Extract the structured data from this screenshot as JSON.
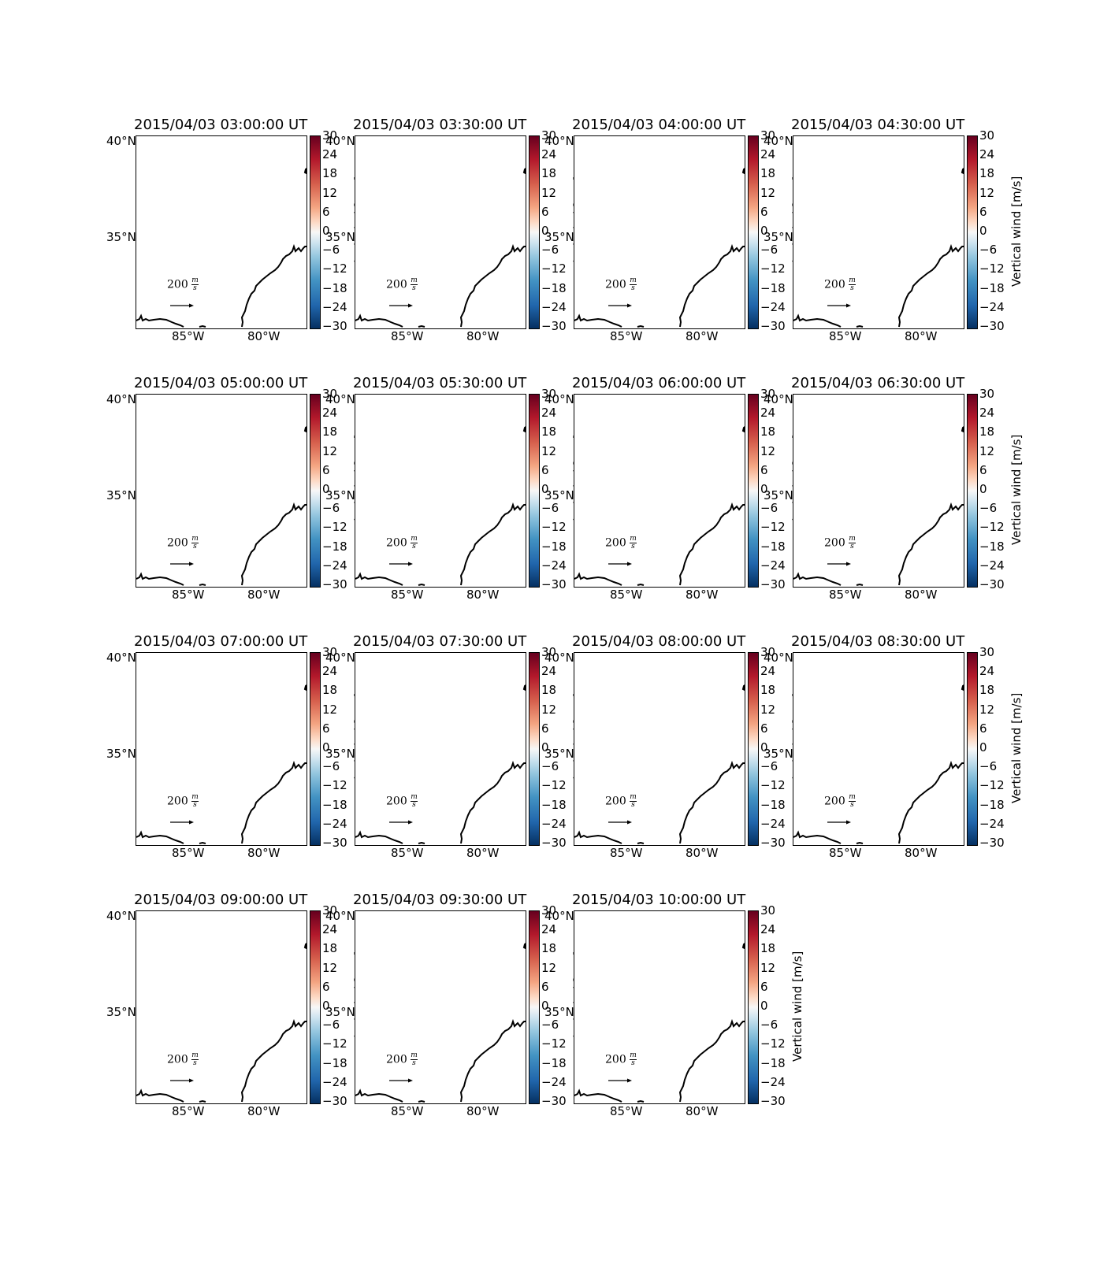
{
  "figure": {
    "panels": [
      {
        "title": "2015/04/03 03:00:00 UT"
      },
      {
        "title": "2015/04/03 03:30:00 UT"
      },
      {
        "title": "2015/04/03 04:00:00 UT"
      },
      {
        "title": "2015/04/03 04:30:00 UT"
      },
      {
        "title": "2015/04/03 05:00:00 UT"
      },
      {
        "title": "2015/04/03 05:30:00 UT"
      },
      {
        "title": "2015/04/03 06:00:00 UT"
      },
      {
        "title": "2015/04/03 06:30:00 UT"
      },
      {
        "title": "2015/04/03 07:00:00 UT"
      },
      {
        "title": "2015/04/03 07:30:00 UT"
      },
      {
        "title": "2015/04/03 08:00:00 UT"
      },
      {
        "title": "2015/04/03 08:30:00 UT"
      },
      {
        "title": "2015/04/03 09:00:00 UT"
      },
      {
        "title": "2015/04/03 09:30:00 UT"
      },
      {
        "title": "2015/04/03 10:00:00 UT"
      }
    ],
    "lat_labels": [
      "40°N",
      "35°N"
    ],
    "lon_labels": [
      "85°W",
      "80°W"
    ],
    "reference_arrow": {
      "value": "200",
      "unit_num": "m",
      "unit_den": "s"
    },
    "colorbar": {
      "label": "Vertical wind [m/s]",
      "ticks": [
        "30",
        "24",
        "18",
        "12",
        "6",
        "0",
        "−6",
        "−12",
        "−18",
        "−24",
        "−30"
      ],
      "colormap": "RdBu_r",
      "range": [
        -30,
        30
      ]
    },
    "colors": {
      "coastline": "#000000",
      "colorbar_top": "#67001f",
      "colorbar_bottom": "#053061"
    }
  }
}
